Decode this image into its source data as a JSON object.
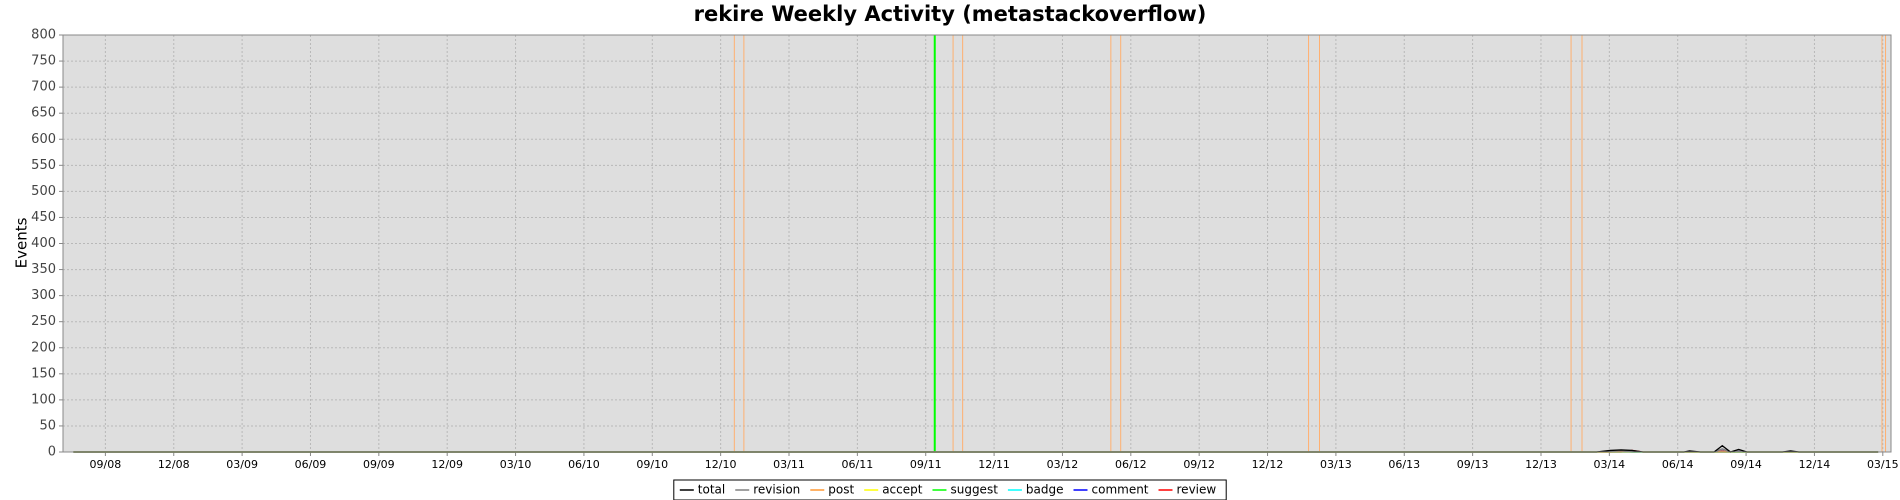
{
  "chart_data": {
    "type": "line",
    "title": "rekire Weekly Activity (metastackoverflow)",
    "ylabel": "Events",
    "ylim": [
      0,
      800
    ],
    "yticks": [
      0,
      50,
      100,
      150,
      200,
      250,
      300,
      350,
      400,
      450,
      500,
      550,
      600,
      650,
      700,
      750,
      800
    ],
    "xlim": [
      2008.512,
      2015.197
    ],
    "xticks": [
      {
        "value": 2008.667,
        "label": "09/08"
      },
      {
        "value": 2008.917,
        "label": "12/08"
      },
      {
        "value": 2009.167,
        "label": "03/09"
      },
      {
        "value": 2009.417,
        "label": "06/09"
      },
      {
        "value": 2009.667,
        "label": "09/09"
      },
      {
        "value": 2009.917,
        "label": "12/09"
      },
      {
        "value": 2010.167,
        "label": "03/10"
      },
      {
        "value": 2010.417,
        "label": "06/10"
      },
      {
        "value": 2010.667,
        "label": "09/10"
      },
      {
        "value": 2010.917,
        "label": "12/10"
      },
      {
        "value": 2011.167,
        "label": "03/11"
      },
      {
        "value": 2011.417,
        "label": "06/11"
      },
      {
        "value": 2011.667,
        "label": "09/11"
      },
      {
        "value": 2011.917,
        "label": "12/11"
      },
      {
        "value": 2012.167,
        "label": "03/12"
      },
      {
        "value": 2012.417,
        "label": "06/12"
      },
      {
        "value": 2012.667,
        "label": "09/12"
      },
      {
        "value": 2012.917,
        "label": "12/12"
      },
      {
        "value": 2013.167,
        "label": "03/13"
      },
      {
        "value": 2013.417,
        "label": "06/13"
      },
      {
        "value": 2013.667,
        "label": "09/13"
      },
      {
        "value": 2013.917,
        "label": "12/13"
      },
      {
        "value": 2014.167,
        "label": "03/14"
      },
      {
        "value": 2014.417,
        "label": "06/14"
      },
      {
        "value": 2014.667,
        "label": "09/14"
      },
      {
        "value": 2014.917,
        "label": "12/14"
      },
      {
        "value": 2015.167,
        "label": "03/15"
      }
    ],
    "grid": true,
    "legend": "bottom",
    "x": [
      2008.55,
      2014.12,
      2014.17,
      2014.21,
      2014.25,
      2014.29,
      2014.42,
      2014.44,
      2014.46,
      2014.5,
      2014.55,
      2014.58,
      2014.61,
      2014.64,
      2014.67,
      2014.8,
      2014.83,
      2014.86,
      2015.15
    ],
    "series": [
      {
        "name": "total",
        "color": "#000000",
        "values": [
          0,
          0,
          3,
          4,
          3,
          0,
          0,
          0,
          2,
          0,
          0,
          12,
          0,
          5,
          0,
          0,
          2,
          0,
          0
        ]
      },
      {
        "name": "revision",
        "color": "#808080",
        "values": [
          0,
          0,
          2,
          3,
          1,
          0,
          0,
          0,
          1,
          0,
          0,
          6,
          0,
          2,
          0,
          0,
          1,
          0,
          0
        ]
      },
      {
        "name": "post",
        "color": "#ff9933",
        "values": [
          0,
          0,
          0,
          1,
          2,
          0,
          0,
          0,
          0,
          0,
          0,
          2,
          0,
          1,
          0,
          0,
          0,
          0,
          0
        ]
      },
      {
        "name": "accept",
        "color": "#ffff00",
        "values": [
          0,
          0,
          0,
          0,
          0,
          0,
          0,
          0,
          0,
          0,
          0,
          0,
          0,
          0,
          0,
          0,
          0,
          0,
          0
        ]
      },
      {
        "name": "suggest",
        "color": "#00ff00",
        "values": [
          0,
          0,
          0,
          0,
          0,
          0,
          0,
          0,
          0,
          0,
          0,
          0,
          0,
          0,
          0,
          0,
          0,
          0,
          0
        ]
      },
      {
        "name": "badge",
        "color": "#00ffff",
        "values": [
          0,
          0,
          1,
          1,
          0,
          0,
          0,
          0,
          0,
          0,
          0,
          1,
          0,
          0,
          0,
          0,
          0,
          0,
          0
        ]
      },
      {
        "name": "comment",
        "color": "#0000ff",
        "values": [
          0,
          0,
          1,
          1,
          0,
          0,
          0,
          0,
          1,
          0,
          0,
          3,
          0,
          2,
          0,
          0,
          1,
          0,
          0
        ]
      },
      {
        "name": "review",
        "color": "#ff0000",
        "values": [
          0,
          0,
          0,
          0,
          3,
          0,
          0,
          0,
          0,
          0,
          0,
          0,
          0,
          0,
          0,
          0,
          0,
          0,
          0
        ]
      }
    ],
    "markers": [
      {
        "x": 2010.967,
        "color": "#ffb070"
      },
      {
        "x": 2011.002,
        "color": "#ffb070"
      },
      {
        "x": 2011.7,
        "color": "#00ff00"
      },
      {
        "x": 2011.767,
        "color": "#ffb070"
      },
      {
        "x": 2011.802,
        "color": "#ffb070"
      },
      {
        "x": 2012.344,
        "color": "#ffb070"
      },
      {
        "x": 2012.38,
        "color": "#ffb070"
      },
      {
        "x": 2013.067,
        "color": "#ffb070"
      },
      {
        "x": 2013.107,
        "color": "#ffb070"
      },
      {
        "x": 2014.027,
        "color": "#ffb070"
      },
      {
        "x": 2014.067,
        "color": "#ffb070"
      },
      {
        "x": 2015.164,
        "color": "#ffb070"
      },
      {
        "x": 2015.177,
        "color": "#ffb070"
      }
    ]
  }
}
